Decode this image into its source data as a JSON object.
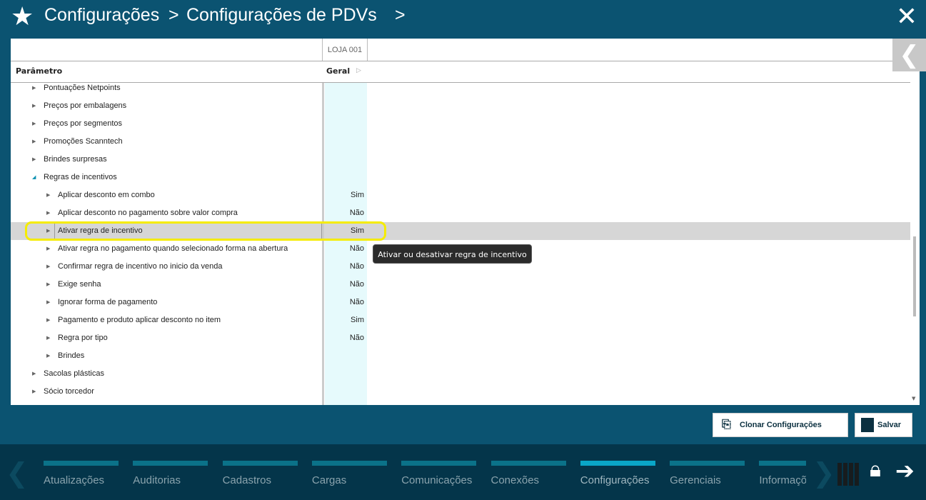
{
  "header": {
    "crumbs": [
      "Configurações",
      "Configurações de PDVs"
    ],
    "separator": ">"
  },
  "grid": {
    "store_column": "LOJA 001",
    "param_header": "Parâmetro",
    "value_header": "Geral",
    "rows": [
      {
        "label": "Pontuações Netpoints",
        "level": 0,
        "expanded": false,
        "value": ""
      },
      {
        "label": "Preços por embalagens",
        "level": 0,
        "expanded": false,
        "value": ""
      },
      {
        "label": "Preços por segmentos",
        "level": 0,
        "expanded": false,
        "value": ""
      },
      {
        "label": "Promoções Scanntech",
        "level": 0,
        "expanded": false,
        "value": ""
      },
      {
        "label": "Brindes surpresas",
        "level": 0,
        "expanded": false,
        "value": ""
      },
      {
        "label": "Regras de incentivos",
        "level": 0,
        "expanded": true,
        "value": ""
      },
      {
        "label": "Aplicar desconto em combo",
        "level": 1,
        "expanded": false,
        "value": "Sim"
      },
      {
        "label": "Aplicar desconto no pagamento sobre valor compra",
        "level": 1,
        "expanded": false,
        "value": "Não"
      },
      {
        "label": "Ativar regra de incentivo",
        "level": 1,
        "expanded": false,
        "value": "Sim",
        "selected": true
      },
      {
        "label": "Ativar regra no pagamento quando selecionado forma na abertura",
        "level": 1,
        "expanded": false,
        "value": "Não"
      },
      {
        "label": "Confirmar regra de incentivo no inicio da venda",
        "level": 1,
        "expanded": false,
        "value": "Não"
      },
      {
        "label": "Exige senha",
        "level": 1,
        "expanded": false,
        "value": "Não"
      },
      {
        "label": "Ignorar forma de pagamento",
        "level": 1,
        "expanded": false,
        "value": "Não"
      },
      {
        "label": "Pagamento e produto aplicar desconto no item",
        "level": 1,
        "expanded": false,
        "value": "Sim"
      },
      {
        "label": "Regra por tipo",
        "level": 1,
        "expanded": false,
        "value": "Não"
      },
      {
        "label": "Brindes",
        "level": 1,
        "expanded": false,
        "value": ""
      },
      {
        "label": "Sacolas plásticas",
        "level": 0,
        "expanded": false,
        "value": ""
      },
      {
        "label": "Sócio torcedor",
        "level": 0,
        "expanded": false,
        "value": ""
      }
    ]
  },
  "tooltip": "Ativar ou desativar regra de incentivo",
  "actions": {
    "clone": "Clonar Configurações",
    "save": "Salvar"
  },
  "nav": {
    "items": [
      "Atualizações",
      "Auditorias",
      "Cadastros",
      "Cargas",
      "Comunicações",
      "Conexões",
      "Configurações",
      "Gerenciais",
      "Informações"
    ],
    "active": "Configurações"
  },
  "colors": {
    "header": "#0b5371",
    "nav": "#04354a",
    "highlight": "#f5ec00",
    "accent": "#0aa6c7"
  }
}
